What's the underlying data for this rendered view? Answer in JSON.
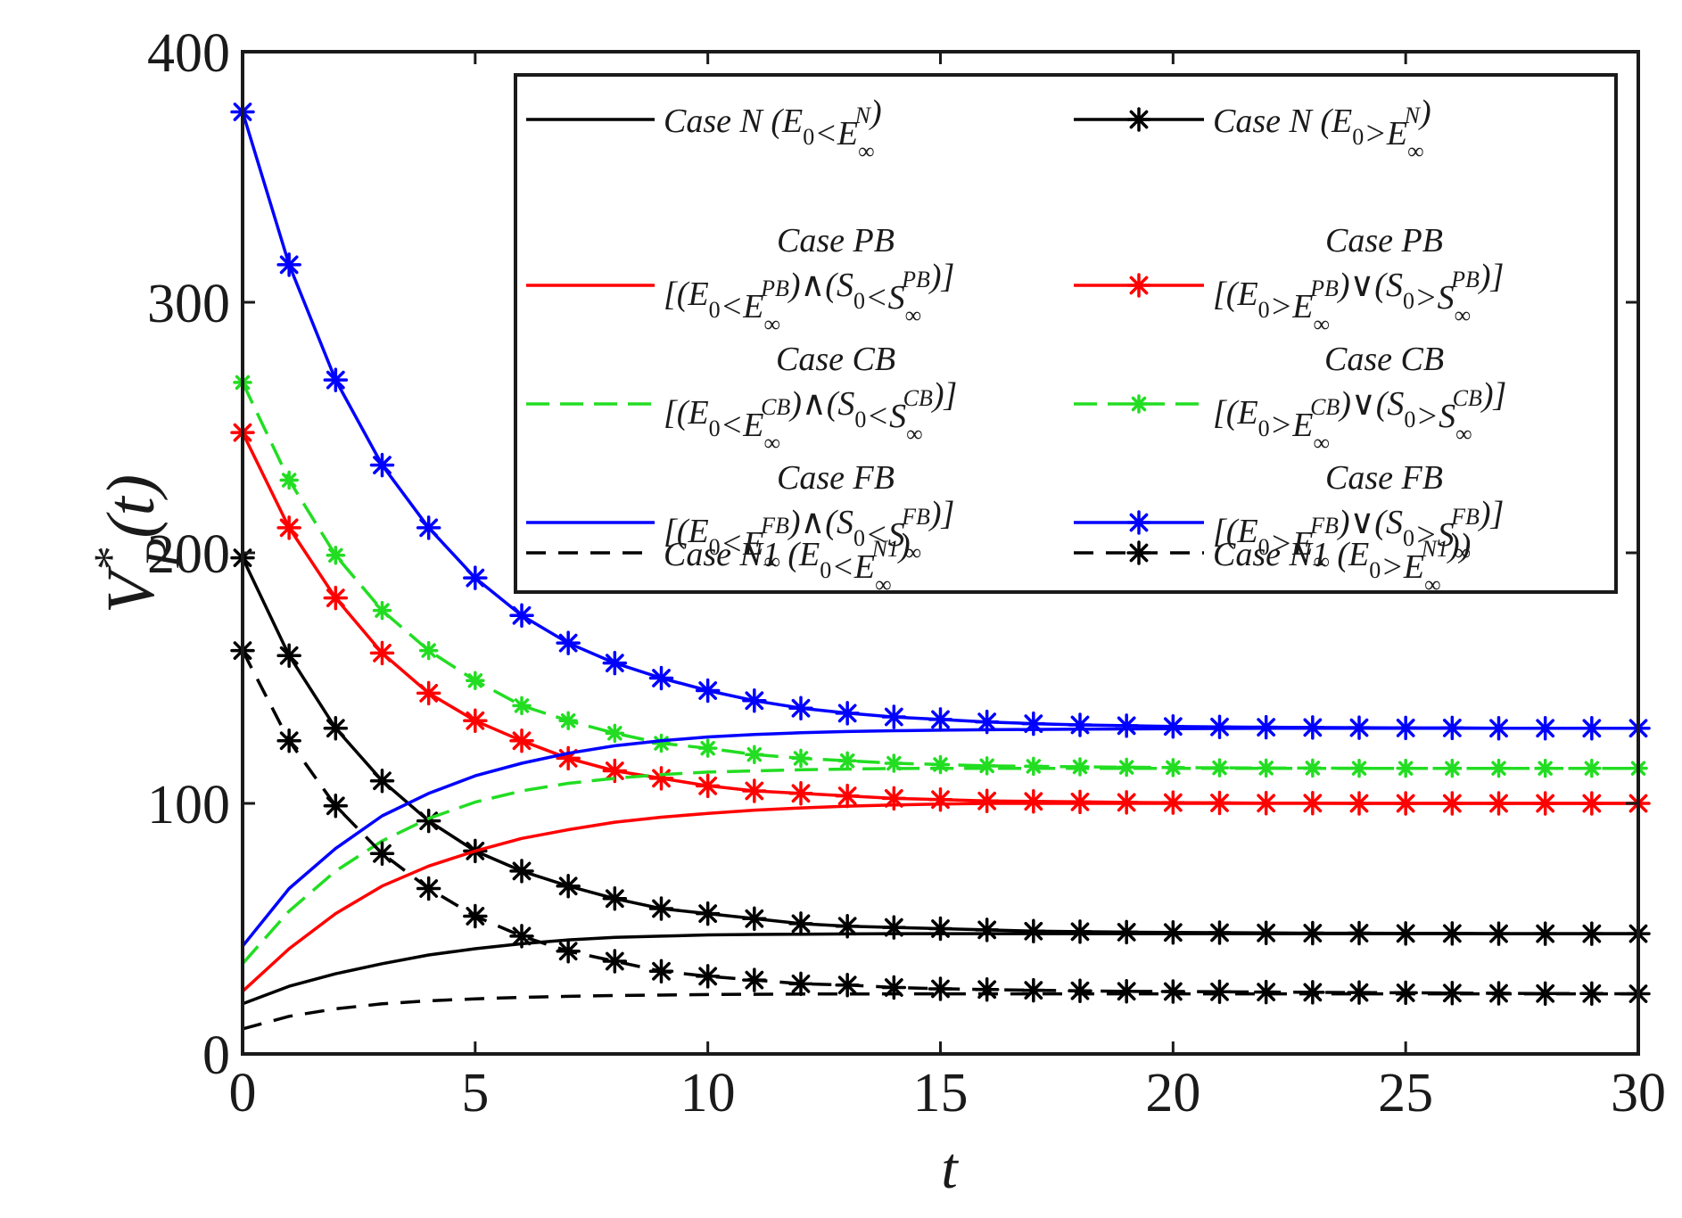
{
  "chart_data": {
    "type": "line",
    "xlabel": "t",
    "ylabel": {
      "main": "V",
      "sup": "*",
      "sub": "P",
      "arg": "(t)"
    },
    "xlim": [
      0,
      30
    ],
    "ylim": [
      0,
      400
    ],
    "xticks": [
      0,
      5,
      10,
      15,
      20,
      25,
      30
    ],
    "yticks": [
      0,
      100,
      200,
      300,
      400
    ],
    "tick_labels_x": [
      "0",
      "5",
      "10",
      "15",
      "20",
      "25",
      "30"
    ],
    "tick_labels_y": [
      "0",
      "100",
      "200",
      "300",
      "400"
    ],
    "grid": false,
    "legend_position": "top-right",
    "colors": {
      "black": "#000000",
      "red": "#ff0000",
      "green": "#22dd22",
      "blue": "#0000ff"
    },
    "series": [
      {
        "name": "case-n-less",
        "style": "solid",
        "color": "black",
        "marker": false,
        "legend_col": 0,
        "legend_row": 0,
        "legend_label": {
          "title": "",
          "line": [
            "Case N (E",
            "0",
            "<E",
            "∞",
            "N",
            ")"
          ]
        },
        "x": [
          0,
          1,
          2,
          3,
          4,
          5,
          6,
          7,
          8,
          9,
          10,
          11,
          12,
          13,
          14,
          15,
          16,
          17,
          18,
          19,
          20,
          21,
          22,
          23,
          24,
          25,
          26,
          27,
          28,
          29,
          30
        ],
        "values": [
          20,
          27,
          32,
          36,
          39.5,
          42,
          44,
          45.5,
          46.5,
          47,
          47.5,
          47.7,
          47.8,
          47.9,
          48,
          48,
          48,
          48,
          48,
          48,
          48,
          48,
          48,
          48,
          48,
          48,
          48,
          48,
          48,
          48,
          48
        ]
      },
      {
        "name": "case-n-greater",
        "style": "solid",
        "color": "black",
        "marker": true,
        "legend_col": 1,
        "legend_row": 0,
        "legend_label": {
          "title": "",
          "line": [
            "Case N (E",
            "0",
            ">E",
            "∞",
            "N",
            ")"
          ]
        },
        "x": [
          0,
          1,
          2,
          3,
          4,
          5,
          6,
          7,
          8,
          9,
          10,
          11,
          12,
          13,
          14,
          15,
          16,
          17,
          18,
          19,
          20,
          21,
          22,
          23,
          24,
          25,
          26,
          27,
          28,
          29,
          30
        ],
        "values": [
          198,
          159,
          130,
          109,
          93,
          81,
          73,
          67,
          62,
          58,
          56,
          54,
          52,
          51,
          50.5,
          50,
          49.5,
          49,
          48.8,
          48.6,
          48.5,
          48.4,
          48.3,
          48.2,
          48.2,
          48.1,
          48.1,
          48,
          48,
          48,
          48
        ]
      },
      {
        "name": "case-pb-less",
        "style": "solid",
        "color": "red",
        "marker": false,
        "legend_col": 0,
        "legend_row": 1,
        "legend_label": {
          "title": "Case PB",
          "line": [
            "[(E",
            "0",
            "<E",
            "∞",
            "PB",
            ")∧(S",
            "0",
            "<S",
            "∞",
            "PB",
            ")]"
          ]
        },
        "x": [
          0,
          1,
          2,
          3,
          4,
          5,
          6,
          7,
          8,
          9,
          10,
          11,
          12,
          13,
          14,
          15,
          16,
          17,
          18,
          19,
          20,
          21,
          22,
          23,
          24,
          25,
          26,
          27,
          28,
          29,
          30
        ],
        "values": [
          25,
          42,
          56,
          67,
          75,
          81,
          86,
          89.5,
          92.5,
          94.5,
          96,
          97.3,
          98.2,
          98.9,
          99.4,
          99.7,
          100,
          100,
          100,
          100,
          100,
          100,
          100,
          100,
          100,
          100,
          100,
          100,
          100,
          100,
          100
        ]
      },
      {
        "name": "case-pb-greater",
        "style": "solid",
        "color": "red",
        "marker": true,
        "legend_col": 1,
        "legend_row": 1,
        "legend_label": {
          "title": "Case PB",
          "line": [
            "[(E",
            "0",
            ">E",
            "∞",
            "PB",
            ")∨(S",
            "0",
            ">S",
            "∞",
            "PB",
            ")]"
          ]
        },
        "x": [
          0,
          1,
          2,
          3,
          4,
          5,
          6,
          7,
          8,
          9,
          10,
          11,
          12,
          13,
          14,
          15,
          16,
          17,
          18,
          19,
          20,
          21,
          22,
          23,
          24,
          25,
          26,
          27,
          28,
          29,
          30
        ],
        "values": [
          248,
          210,
          182,
          160,
          144,
          133,
          125,
          118,
          113,
          110,
          107,
          105,
          104,
          103,
          102,
          101.5,
          101,
          100.8,
          100.6,
          100.4,
          100.3,
          100.2,
          100.1,
          100.1,
          100,
          100,
          100,
          100,
          100,
          100,
          100
        ]
      },
      {
        "name": "case-cb-less",
        "style": "dashed",
        "color": "green",
        "marker": false,
        "legend_col": 0,
        "legend_row": 2,
        "legend_label": {
          "title": "Case CB",
          "line": [
            "[(E",
            "0",
            "<E",
            "∞",
            "CB",
            ")∧(S",
            "0",
            "<S",
            "∞",
            "CB",
            ")]"
          ]
        },
        "x": [
          0,
          1,
          2,
          3,
          4,
          5,
          6,
          7,
          8,
          9,
          10,
          11,
          12,
          13,
          14,
          15,
          16,
          17,
          18,
          19,
          20,
          21,
          22,
          23,
          24,
          25,
          26,
          27,
          28,
          29,
          30
        ],
        "values": [
          36,
          57,
          73,
          85,
          94,
          100.5,
          105,
          108,
          110,
          111.5,
          112.5,
          113,
          113.4,
          113.7,
          113.9,
          114,
          114,
          114,
          114,
          114,
          114,
          114,
          114,
          114,
          114,
          114,
          114,
          114,
          114,
          114,
          114
        ]
      },
      {
        "name": "case-cb-greater",
        "style": "dashed",
        "color": "green",
        "marker": true,
        "legend_col": 1,
        "legend_row": 2,
        "legend_label": {
          "title": "Case CB",
          "line": [
            "[(E",
            "0",
            ">E",
            "∞",
            "CB",
            ")∨(S",
            "0",
            ">S",
            "∞",
            "CB",
            ")]"
          ]
        },
        "x": [
          0,
          1,
          2,
          3,
          4,
          5,
          6,
          7,
          8,
          9,
          10,
          11,
          12,
          13,
          14,
          15,
          16,
          17,
          18,
          19,
          20,
          21,
          22,
          23,
          24,
          25,
          26,
          27,
          28,
          29,
          30
        ],
        "values": [
          268,
          229,
          199,
          177,
          161,
          149,
          139,
          133,
          128,
          124,
          122,
          119.5,
          118,
          117,
          116,
          115.5,
          115,
          114.8,
          114.6,
          114.4,
          114.3,
          114.2,
          114.1,
          114.1,
          114,
          114,
          114,
          114,
          114,
          114,
          114
        ]
      },
      {
        "name": "case-fb-less",
        "style": "solid",
        "color": "blue",
        "marker": false,
        "legend_col": 0,
        "legend_row": 3,
        "legend_label": {
          "title": "Case FB",
          "line": [
            "[(E",
            "0",
            "<E",
            "∞",
            "FB",
            ")∧(S",
            "0",
            "<S",
            "∞",
            "FB",
            ")]"
          ]
        },
        "x": [
          0,
          1,
          2,
          3,
          4,
          5,
          6,
          7,
          8,
          9,
          10,
          11,
          12,
          13,
          14,
          15,
          16,
          17,
          18,
          19,
          20,
          21,
          22,
          23,
          24,
          25,
          26,
          27,
          28,
          29,
          30
        ],
        "values": [
          43,
          66,
          82,
          95,
          104,
          111,
          116,
          120,
          123,
          125,
          126.5,
          127.5,
          128.2,
          128.7,
          129,
          129.2,
          129.4,
          129.5,
          129.6,
          129.7,
          129.8,
          129.9,
          130,
          130,
          130,
          130,
          130,
          130,
          130,
          130,
          130
        ]
      },
      {
        "name": "case-fb-greater",
        "style": "solid",
        "color": "blue",
        "marker": true,
        "legend_col": 1,
        "legend_row": 3,
        "legend_label": {
          "title": "Case FB",
          "line": [
            "[(E",
            "0",
            ">E",
            "∞",
            "FB",
            ")∨(S",
            "0",
            ">S",
            "∞",
            "FB",
            ")]"
          ]
        },
        "x": [
          0,
          1,
          2,
          3,
          4,
          5,
          6,
          7,
          8,
          9,
          10,
          11,
          12,
          13,
          14,
          15,
          16,
          17,
          18,
          19,
          20,
          21,
          22,
          23,
          24,
          25,
          26,
          27,
          28,
          29,
          30
        ],
        "values": [
          376,
          315,
          269,
          235,
          210,
          190,
          175,
          164,
          156,
          150,
          145,
          141,
          138,
          136,
          134.5,
          133.5,
          132.5,
          131.8,
          131.3,
          131,
          130.7,
          130.5,
          130.4,
          130.3,
          130.2,
          130.1,
          130.1,
          130,
          130,
          130,
          130
        ]
      },
      {
        "name": "case-n1-less",
        "style": "dashed",
        "color": "black",
        "marker": false,
        "legend_col": 0,
        "legend_row": 4,
        "legend_label": {
          "title": "",
          "line": [
            "Case N1 (E",
            "0",
            "<E",
            "∞",
            "N1",
            ")"
          ]
        },
        "x": [
          0,
          1,
          2,
          3,
          4,
          5,
          6,
          7,
          8,
          9,
          10,
          11,
          12,
          13,
          14,
          15,
          16,
          17,
          18,
          19,
          20,
          21,
          22,
          23,
          24,
          25,
          26,
          27,
          28,
          29,
          30
        ],
        "values": [
          10,
          15,
          18,
          20,
          21.2,
          22,
          22.6,
          23,
          23.3,
          23.5,
          23.7,
          23.8,
          23.9,
          23.9,
          24,
          24,
          24,
          24,
          24,
          24,
          24,
          24,
          24,
          24,
          24,
          24,
          24,
          24,
          24,
          24,
          24
        ]
      },
      {
        "name": "case-n1-greater",
        "style": "dashed",
        "color": "black",
        "marker": true,
        "legend_col": 1,
        "legend_row": 4,
        "legend_label": {
          "title": "",
          "line": [
            "Case N1 (E",
            "0",
            ">E",
            "∞",
            "N1",
            "))"
          ]
        },
        "x": [
          0,
          1,
          2,
          3,
          4,
          5,
          6,
          7,
          8,
          9,
          10,
          11,
          12,
          13,
          14,
          15,
          16,
          17,
          18,
          19,
          20,
          21,
          22,
          23,
          24,
          25,
          26,
          27,
          28,
          29,
          30
        ],
        "values": [
          161,
          125,
          99,
          80,
          66,
          55,
          47,
          41,
          37,
          33,
          31,
          29.5,
          28,
          27.5,
          26.5,
          26,
          25.7,
          25.4,
          25.2,
          25,
          24.9,
          24.8,
          24.7,
          24.6,
          24.5,
          24.4,
          24.3,
          24.2,
          24.1,
          24.1,
          24
        ]
      }
    ]
  }
}
